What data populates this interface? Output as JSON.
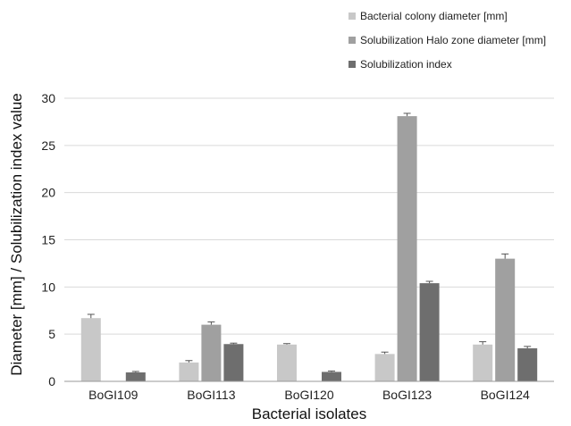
{
  "chart_data": {
    "type": "bar",
    "xlabel": "Bacterial isolates",
    "ylabel": "Diameter [mm] / Solubilization index value",
    "ylim": [
      0,
      30
    ],
    "yticks": [
      0,
      5,
      10,
      15,
      20,
      25,
      30
    ],
    "grid": "horizontal",
    "legend_position": "top-right",
    "categories": [
      "BoGI109",
      "BoGI113",
      "BoGI120",
      "BoGI123",
      "BoGI124"
    ],
    "series": [
      {
        "name": "Bacterial colony diameter [mm]",
        "color": "#c8c8c8",
        "values": [
          6.7,
          2.0,
          3.9,
          2.9,
          3.9
        ],
        "errors": [
          0.4,
          0.2,
          0.1,
          0.2,
          0.3
        ]
      },
      {
        "name": "Solubilization Halo zone diameter [mm]",
        "color": "#a0a0a0",
        "values": [
          0,
          6.0,
          0,
          28.1,
          13.0
        ],
        "errors": [
          0,
          0.3,
          0,
          0.3,
          0.5
        ]
      },
      {
        "name": "Solubilization index",
        "color": "#6e6e6e",
        "values": [
          0.95,
          3.95,
          1.0,
          10.4,
          3.5
        ],
        "errors": [
          0.1,
          0.1,
          0.1,
          0.2,
          0.2
        ]
      }
    ]
  }
}
